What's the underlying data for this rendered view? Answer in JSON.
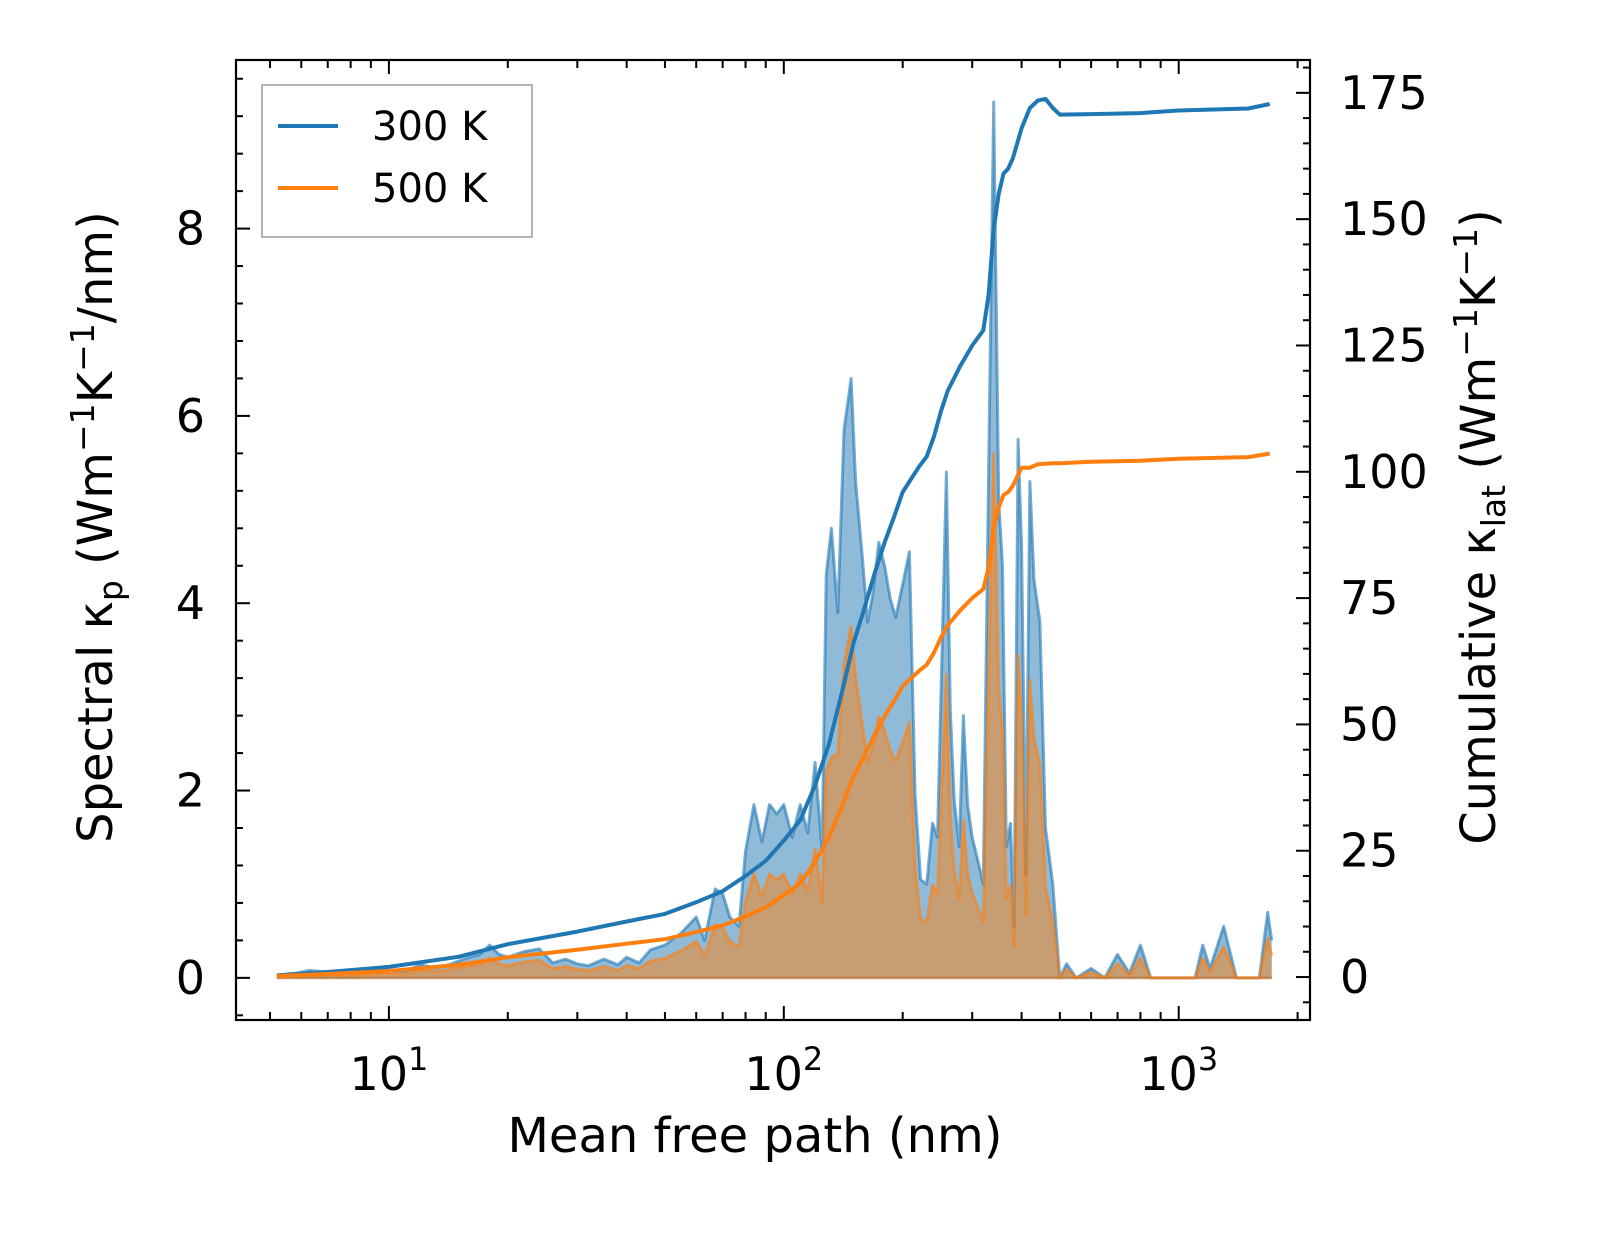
{
  "chart_data": {
    "type": "area",
    "xlabel": "Mean free path (nm)",
    "ylabel_left": {
      "base": "Spectral κ",
      "sub": "p",
      "unit_prefix": " (Wm",
      "sup1": "−1",
      "mid": "K",
      "sup2": "−1",
      "unit_suffix": "/nm)"
    },
    "ylabel_right": {
      "base": "Cumulative κ",
      "sub": "lat",
      "unit_prefix": " (Wm",
      "sup1": "−1",
      "mid": "K",
      "sup2": "−1",
      "unit_suffix": ")"
    },
    "x_scale": "log",
    "xlim": [
      4.1,
      2150
    ],
    "ylim_left": [
      -0.45,
      9.8
    ],
    "ylim_right": [
      -8.5,
      181.5
    ],
    "x_ticks": [
      {
        "value": 10,
        "base": "10",
        "exp": "1"
      },
      {
        "value": 100,
        "base": "10",
        "exp": "2"
      },
      {
        "value": 1000,
        "base": "10",
        "exp": "3"
      }
    ],
    "y_ticks_left": [
      {
        "value": 0,
        "label": "0"
      },
      {
        "value": 2,
        "label": "2"
      },
      {
        "value": 4,
        "label": "4"
      },
      {
        "value": 6,
        "label": "6"
      },
      {
        "value": 8,
        "label": "8"
      }
    ],
    "y_ticks_right": [
      {
        "value": 0,
        "label": "0"
      },
      {
        "value": 25,
        "label": "25"
      },
      {
        "value": 50,
        "label": "50"
      },
      {
        "value": 75,
        "label": "75"
      },
      {
        "value": 100,
        "label": "100"
      },
      {
        "value": 125,
        "label": "125"
      },
      {
        "value": 150,
        "label": "150"
      },
      {
        "value": 175,
        "label": "175"
      }
    ],
    "legend": {
      "position": "upper-left",
      "entries": [
        "300 K",
        "500 K"
      ]
    },
    "colors": {
      "300 K": "#1f77b4",
      "500 K": "#ff7f0e"
    },
    "spectral_series": [
      {
        "name": "300 K",
        "x": [
          5.2,
          5.8,
          6.3,
          7,
          8,
          9,
          10,
          11,
          12,
          13,
          14,
          15,
          16,
          17,
          18,
          19,
          20,
          22,
          24,
          26,
          28,
          30,
          32,
          35,
          38,
          40,
          43,
          46,
          50,
          55,
          60,
          63,
          67,
          70,
          73,
          77,
          80,
          84,
          88,
          92,
          96,
          100,
          105,
          110,
          115,
          120,
          125,
          128,
          132,
          137,
          142,
          148,
          152,
          158,
          163,
          168,
          174,
          180,
          186,
          192,
          200,
          208,
          215,
          222,
          230,
          238,
          245,
          252,
          258,
          264,
          270,
          278,
          285,
          292,
          300,
          310,
          320,
          330,
          340,
          350,
          358,
          366,
          375,
          383,
          392,
          400,
          410,
          420,
          430,
          445,
          460,
          480,
          500,
          520,
          550,
          600,
          650,
          700,
          750,
          800,
          850,
          950,
          1100,
          1150,
          1200,
          1300,
          1400,
          1500,
          1600,
          1680,
          1720
        ],
        "values": [
          0.03,
          0.05,
          0.08,
          0.06,
          0.05,
          0.06,
          0.08,
          0.07,
          0.14,
          0.11,
          0.13,
          0.18,
          0.22,
          0.25,
          0.35,
          0.25,
          0.22,
          0.28,
          0.31,
          0.16,
          0.2,
          0.15,
          0.13,
          0.2,
          0.14,
          0.22,
          0.16,
          0.3,
          0.35,
          0.48,
          0.65,
          0.4,
          0.95,
          0.9,
          0.65,
          0.55,
          1.35,
          1.85,
          1.45,
          1.85,
          1.75,
          1.85,
          1.5,
          1.85,
          1.55,
          2.3,
          1.35,
          4.3,
          4.8,
          3.9,
          5.85,
          6.4,
          5.3,
          4.5,
          3.8,
          4.1,
          4.65,
          4.4,
          4.05,
          3.85,
          4.2,
          4.55,
          1.95,
          1.05,
          1.0,
          1.65,
          1.5,
          3.6,
          5.4,
          2.85,
          1.9,
          1.4,
          2.8,
          1.85,
          1.5,
          1.25,
          1.0,
          5.4,
          9.35,
          5.1,
          4.4,
          1.4,
          1.65,
          0.55,
          5.75,
          4.6,
          1.1,
          5.3,
          4.25,
          3.8,
          1.6,
          1.0,
          0.0,
          0.15,
          0.0,
          0.1,
          0.0,
          0.25,
          0.05,
          0.35,
          0.0,
          0.0,
          0.0,
          0.35,
          0.1,
          0.55,
          0.0,
          0.0,
          0.0,
          0.7,
          0.4
        ]
      },
      {
        "name": "500 K",
        "x": [
          5.2,
          5.8,
          6.3,
          7,
          8,
          9,
          10,
          11,
          12,
          13,
          14,
          15,
          16,
          17,
          18,
          19,
          20,
          22,
          24,
          26,
          28,
          30,
          32,
          35,
          38,
          40,
          43,
          46,
          50,
          55,
          60,
          63,
          67,
          70,
          73,
          77,
          80,
          84,
          88,
          92,
          96,
          100,
          105,
          110,
          115,
          120,
          125,
          128,
          132,
          137,
          142,
          148,
          152,
          158,
          163,
          168,
          174,
          180,
          186,
          192,
          200,
          208,
          215,
          222,
          230,
          238,
          245,
          252,
          258,
          264,
          270,
          278,
          285,
          292,
          300,
          310,
          320,
          330,
          340,
          350,
          358,
          366,
          375,
          383,
          392,
          400,
          410,
          420,
          430,
          445,
          460,
          480,
          500,
          520,
          550,
          600,
          650,
          700,
          750,
          800,
          850,
          950,
          1100,
          1150,
          1200,
          1300,
          1400,
          1500,
          1600,
          1680,
          1720
        ],
        "values": [
          0.02,
          0.03,
          0.05,
          0.04,
          0.03,
          0.04,
          0.05,
          0.04,
          0.08,
          0.07,
          0.08,
          0.11,
          0.13,
          0.15,
          0.21,
          0.15,
          0.13,
          0.17,
          0.19,
          0.1,
          0.12,
          0.09,
          0.08,
          0.12,
          0.08,
          0.13,
          0.1,
          0.18,
          0.21,
          0.29,
          0.39,
          0.24,
          0.57,
          0.54,
          0.39,
          0.33,
          0.81,
          1.11,
          0.87,
          1.11,
          1.05,
          1.11,
          0.9,
          1.11,
          0.93,
          1.38,
          0.81,
          2.2,
          2.35,
          2.4,
          3.35,
          3.75,
          3.2,
          2.7,
          2.3,
          2.46,
          2.79,
          2.64,
          2.43,
          2.31,
          2.52,
          2.73,
          1.17,
          0.63,
          0.6,
          0.99,
          0.9,
          2.16,
          3.24,
          1.71,
          1.14,
          0.84,
          1.68,
          1.11,
          0.9,
          0.75,
          0.6,
          3.24,
          5.6,
          3.06,
          2.64,
          0.84,
          0.99,
          0.33,
          3.45,
          2.76,
          0.66,
          3.18,
          2.55,
          2.28,
          0.96,
          0.6,
          0.0,
          0.09,
          0.0,
          0.06,
          0.0,
          0.15,
          0.03,
          0.21,
          0.0,
          0.0,
          0.0,
          0.21,
          0.06,
          0.33,
          0.0,
          0.0,
          0.0,
          0.42,
          0.24
        ]
      }
    ],
    "cumulative_series": [
      {
        "name": "300 K",
        "x": [
          5.2,
          7,
          10,
          15,
          20,
          30,
          40,
          50,
          60,
          70,
          80,
          90,
          100,
          110,
          120,
          130,
          140,
          150,
          160,
          170,
          180,
          190,
          200,
          220,
          230,
          240,
          250,
          260,
          280,
          300,
          320,
          330,
          340,
          350,
          360,
          370,
          380,
          390,
          400,
          420,
          440,
          460,
          480,
          500,
          600,
          800,
          1000,
          1500,
          1700
        ],
        "values": [
          0.3,
          1.0,
          2.0,
          4.0,
          6.5,
          9.0,
          11.0,
          12.5,
          14.8,
          17.0,
          20.0,
          23.0,
          27.0,
          31.0,
          38.0,
          46.0,
          56.0,
          66.0,
          73.0,
          80.0,
          86.0,
          91.0,
          96.0,
          101.0,
          103.0,
          107.0,
          112.0,
          116.0,
          121.0,
          125.0,
          128.0,
          135.0,
          148.0,
          155.0,
          159.0,
          160.0,
          162.0,
          165.0,
          168.0,
          172.0,
          173.5,
          173.8,
          172.0,
          170.7,
          170.8,
          171.0,
          171.5,
          171.9,
          172.8
        ]
      },
      {
        "name": "500 K",
        "x": [
          5.2,
          7,
          10,
          15,
          20,
          30,
          40,
          50,
          60,
          70,
          80,
          90,
          100,
          110,
          120,
          130,
          140,
          150,
          160,
          170,
          180,
          190,
          200,
          220,
          230,
          240,
          250,
          260,
          280,
          300,
          320,
          330,
          340,
          350,
          360,
          370,
          380,
          390,
          400,
          420,
          440,
          460,
          480,
          500,
          600,
          800,
          1000,
          1500,
          1700
        ],
        "values": [
          0.2,
          0.6,
          1.2,
          2.4,
          3.9,
          5.4,
          6.6,
          7.5,
          8.9,
          10.2,
          12.0,
          13.8,
          16.2,
          18.6,
          22.8,
          27.6,
          33.6,
          39.6,
          43.8,
          48.0,
          51.6,
          54.6,
          57.6,
          60.6,
          61.8,
          64.2,
          67.2,
          69.6,
          72.6,
          75.0,
          76.8,
          81.0,
          88.8,
          93.0,
          95.4,
          96.0,
          97.2,
          99.0,
          100.8,
          100.8,
          101.5,
          101.6,
          101.7,
          101.7,
          102.0,
          102.2,
          102.6,
          102.9,
          103.6
        ]
      }
    ]
  }
}
